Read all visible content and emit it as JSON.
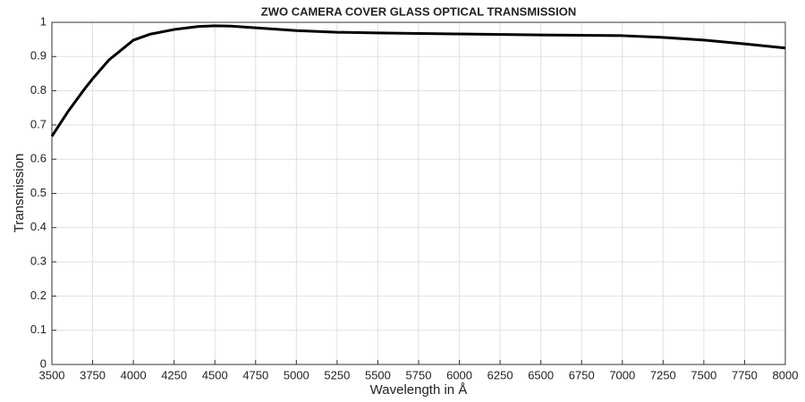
{
  "chart_data": {
    "type": "line",
    "title": "ZWO CAMERA COVER GLASS OPTICAL TRANSMISSION",
    "x_label": "Wavelength in Å",
    "y_label": "Transmission",
    "x": [
      3500,
      3600,
      3700,
      3750,
      3850,
      4000,
      4100,
      4250,
      4400,
      4500,
      4600,
      4750,
      5000,
      5250,
      5500,
      6000,
      6500,
      7000,
      7250,
      7500,
      7750,
      8000
    ],
    "series": [
      {
        "name": "Transmission",
        "color": "#000000",
        "values": [
          0.667,
          0.74,
          0.805,
          0.835,
          0.89,
          0.948,
          0.965,
          0.979,
          0.988,
          0.99,
          0.989,
          0.984,
          0.976,
          0.971,
          0.969,
          0.966,
          0.963,
          0.961,
          0.956,
          0.948,
          0.937,
          0.925
        ]
      }
    ],
    "xlim": [
      3500,
      8000
    ],
    "xticks": [
      3500,
      3750,
      4000,
      4250,
      4500,
      4750,
      5000,
      5250,
      5500,
      5750,
      6000,
      6250,
      6500,
      6750,
      7000,
      7250,
      7500,
      7750,
      8000
    ],
    "ylim": [
      0,
      1
    ],
    "yticks": [
      0,
      0.1,
      0.2,
      0.3,
      0.4,
      0.5,
      0.6,
      0.7,
      0.8,
      0.9,
      1
    ],
    "grid": true
  }
}
